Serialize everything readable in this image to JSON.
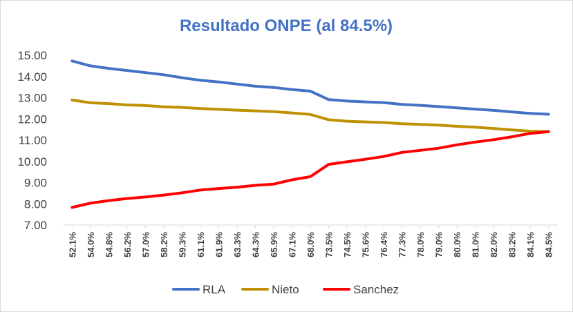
{
  "chart_data": {
    "type": "line",
    "title": "Resultado ONPE (al 84.5%)",
    "xlabel": "",
    "ylabel": "",
    "categories": [
      "52.1%",
      "54.0%",
      "54.8%",
      "56.2%",
      "57.0%",
      "58.2%",
      "59.3%",
      "61.1%",
      "61.9%",
      "63.3%",
      "64.3%",
      "65.9%",
      "67.1%",
      "68.0%",
      "73.5%",
      "74.5%",
      "75.6%",
      "76.4%",
      "77.3%",
      "78.0%",
      "79.0%",
      "80.0%",
      "81.0%",
      "82.0%",
      "83.2%",
      "84.1%",
      "84.5%"
    ],
    "ylim": [
      7.0,
      15.0
    ],
    "yticks": [
      "7.00",
      "8.00",
      "9.00",
      "10.00",
      "11.00",
      "12.00",
      "13.00",
      "14.00",
      "15.00"
    ],
    "grid": false,
    "legend_position": "bottom",
    "series": [
      {
        "name": "RLA",
        "color": "#4472c4",
        "values": [
          14.73,
          14.5,
          14.38,
          14.28,
          14.18,
          14.08,
          13.94,
          13.82,
          13.74,
          13.64,
          13.54,
          13.48,
          13.38,
          13.31,
          12.91,
          12.84,
          12.8,
          12.77,
          12.68,
          12.64,
          12.58,
          12.52,
          12.46,
          12.4,
          12.33,
          12.26,
          12.22
        ]
      },
      {
        "name": "Nieto",
        "color": "#bf9000",
        "values": [
          12.89,
          12.76,
          12.72,
          12.66,
          12.63,
          12.57,
          12.54,
          12.49,
          12.45,
          12.41,
          12.38,
          12.34,
          12.28,
          12.21,
          11.96,
          11.89,
          11.86,
          11.83,
          11.77,
          11.74,
          11.71,
          11.65,
          11.61,
          11.55,
          11.48,
          11.42,
          11.4
        ]
      },
      {
        "name": "Sanchez",
        "color": "#ff0000",
        "values": [
          7.83,
          8.03,
          8.15,
          8.25,
          8.32,
          8.41,
          8.52,
          8.65,
          8.72,
          8.78,
          8.87,
          8.93,
          9.13,
          9.28,
          9.86,
          9.98,
          10.1,
          10.23,
          10.42,
          10.52,
          10.62,
          10.78,
          10.91,
          11.02,
          11.16,
          11.32,
          11.4
        ]
      }
    ]
  }
}
